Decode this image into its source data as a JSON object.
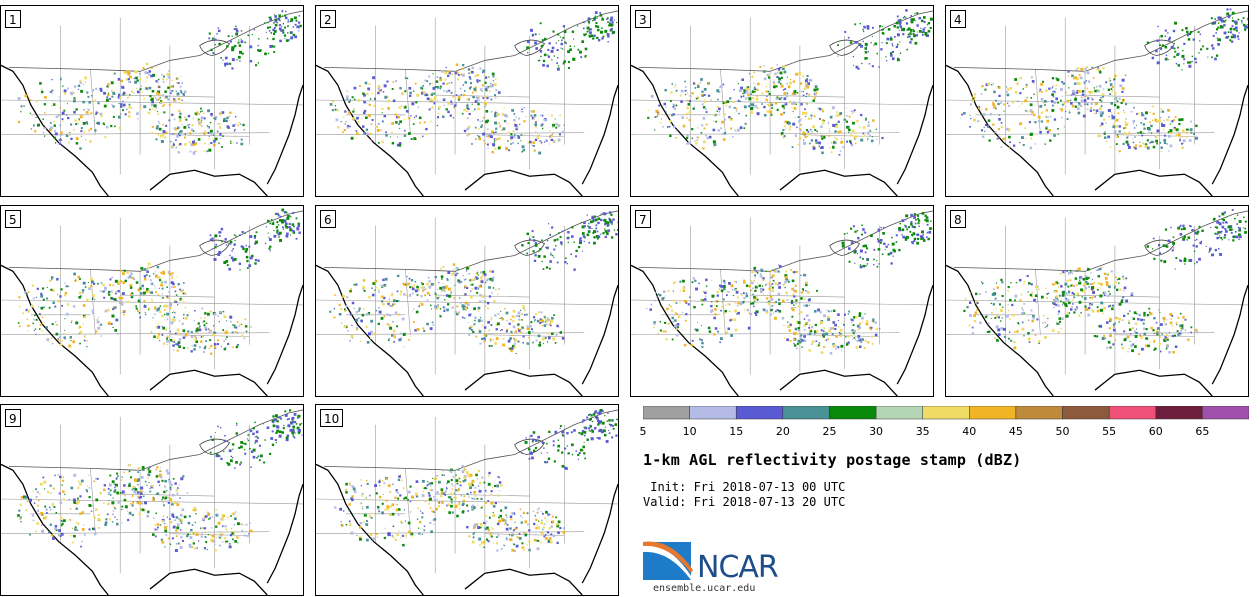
{
  "panels": [
    "1",
    "2",
    "3",
    "4",
    "5",
    "6",
    "7",
    "8",
    "9",
    "10"
  ],
  "colorbar": {
    "ticks": [
      "5",
      "10",
      "15",
      "20",
      "25",
      "30",
      "35",
      "40",
      "45",
      "50",
      "55",
      "60",
      "65"
    ],
    "colors": [
      "#a0a0a0",
      "#b4bce6",
      "#5a5ad2",
      "#4a9296",
      "#0a8a0a",
      "#b4d6b4",
      "#f0dc64",
      "#f0b424",
      "#be8a3c",
      "#8c5a3c",
      "#f05078",
      "#6e1e3c",
      "#a050aa"
    ]
  },
  "title": "1-km AGL reflectivity postage stamp (dBZ)",
  "init": " Init: Fri 2018-07-13 00 UTC",
  "valid": "Valid: Fri 2018-07-13 20 UTC",
  "logo": {
    "brand_text": "NCAR",
    "brand_color": "#1d4e89",
    "swoosh_color": "#1e7bc8"
  },
  "website": "ensemble.ucar.edu"
}
